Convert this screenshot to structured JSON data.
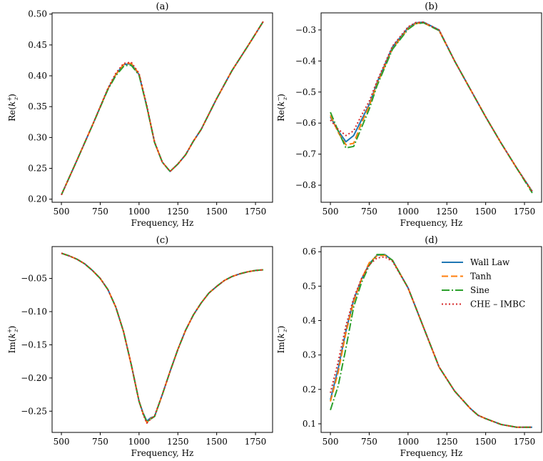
{
  "figure": {
    "series_names": [
      "Wall Law",
      "Tanh",
      "Sine",
      "CHE – IMBC"
    ],
    "series_colors": [
      "#1f77b4",
      "#ff7f0e",
      "#2ca02c",
      "#d62728"
    ]
  },
  "chart_data": [
    {
      "type": "line",
      "title": "(a)",
      "xlabel": "Frequency, Hz",
      "ylabel_main": "Re(",
      "ylabel_k": "k",
      "ylabel_sub": "z",
      "ylabel_sup": "+",
      "ylabel_close": ")",
      "xlim": [
        440,
        1860
      ],
      "ylim": [
        0.195,
        0.502
      ],
      "xticks": [
        500,
        750,
        1000,
        1250,
        1500,
        1750
      ],
      "xtick_labels": [
        "500",
        "750",
        "1000",
        "1250",
        "1500",
        "1750"
      ],
      "yticks": [
        0.2,
        0.25,
        0.3,
        0.35,
        0.4,
        0.45,
        0.5
      ],
      "ytick_labels": [
        "0.20",
        "0.25",
        "0.30",
        "0.35",
        "0.40",
        "0.45",
        "0.50"
      ],
      "series": [
        {
          "name": "Wall Law",
          "x": [
            500,
            600,
            700,
            800,
            850,
            900,
            925,
            950,
            1000,
            1050,
            1100,
            1150,
            1200,
            1250,
            1300,
            1350,
            1400,
            1500,
            1600,
            1700,
            1800
          ],
          "y": [
            0.207,
            0.263,
            0.32,
            0.379,
            0.402,
            0.418,
            0.419,
            0.419,
            0.402,
            0.35,
            0.292,
            0.26,
            0.245,
            0.257,
            0.272,
            0.294,
            0.313,
            0.363,
            0.409,
            0.448,
            0.488
          ]
        },
        {
          "name": "Tanh",
          "x": [
            500,
            600,
            700,
            800,
            850,
            900,
            925,
            950,
            1000,
            1050,
            1100,
            1150,
            1200,
            1250,
            1300,
            1350,
            1400,
            1500,
            1600,
            1700,
            1800
          ],
          "y": [
            0.207,
            0.263,
            0.32,
            0.379,
            0.402,
            0.418,
            0.42,
            0.42,
            0.403,
            0.35,
            0.292,
            0.26,
            0.245,
            0.257,
            0.272,
            0.294,
            0.313,
            0.363,
            0.409,
            0.448,
            0.488
          ]
        },
        {
          "name": "Sine",
          "x": [
            500,
            600,
            700,
            800,
            850,
            900,
            925,
            950,
            1000,
            1050,
            1100,
            1150,
            1200,
            1250,
            1300,
            1350,
            1400,
            1500,
            1600,
            1700,
            1800
          ],
          "y": [
            0.207,
            0.263,
            0.32,
            0.378,
            0.4,
            0.415,
            0.417,
            0.417,
            0.401,
            0.35,
            0.292,
            0.26,
            0.245,
            0.257,
            0.272,
            0.294,
            0.313,
            0.363,
            0.409,
            0.448,
            0.488
          ]
        },
        {
          "name": "CHE – IMBC",
          "x": [
            500,
            600,
            700,
            800,
            850,
            900,
            925,
            950,
            1000,
            1050,
            1100,
            1150,
            1200,
            1250,
            1300,
            1350,
            1400,
            1500,
            1600,
            1700,
            1800
          ],
          "y": [
            0.207,
            0.263,
            0.32,
            0.38,
            0.404,
            0.42,
            0.421,
            0.422,
            0.404,
            0.352,
            0.293,
            0.26,
            0.245,
            0.257,
            0.272,
            0.294,
            0.313,
            0.363,
            0.409,
            0.448,
            0.488
          ]
        }
      ]
    },
    {
      "type": "line",
      "title": "(b)",
      "xlabel": "Frequency, Hz",
      "ylabel_main": "Re(",
      "ylabel_k": "k",
      "ylabel_sub": "z",
      "ylabel_sup": "−",
      "ylabel_close": ")",
      "xlim": [
        440,
        1860
      ],
      "ylim": [
        -0.855,
        -0.245
      ],
      "xticks": [
        500,
        750,
        1000,
        1250,
        1500,
        1750
      ],
      "xtick_labels": [
        "500",
        "750",
        "1000",
        "1250",
        "1500",
        "1750"
      ],
      "yticks": [
        -0.8,
        -0.7,
        -0.6,
        -0.5,
        -0.4,
        -0.3
      ],
      "ytick_labels": [
        "−0.8",
        "−0.7",
        "−0.6",
        "−0.5",
        "−0.4",
        "−0.3"
      ],
      "series": [
        {
          "name": "Wall Law",
          "x": [
            500,
            550,
            600,
            650,
            700,
            750,
            800,
            900,
            1000,
            1050,
            1100,
            1200,
            1300,
            1400,
            1500,
            1600,
            1700,
            1800
          ],
          "y": [
            -0.58,
            -0.625,
            -0.66,
            -0.64,
            -0.59,
            -0.54,
            -0.47,
            -0.355,
            -0.293,
            -0.277,
            -0.275,
            -0.3,
            -0.4,
            -0.49,
            -0.58,
            -0.665,
            -0.745,
            -0.82
          ]
        },
        {
          "name": "Tanh",
          "x": [
            500,
            550,
            600,
            650,
            700,
            750,
            800,
            900,
            1000,
            1050,
            1100,
            1200,
            1300,
            1400,
            1500,
            1600,
            1700,
            1800
          ],
          "y": [
            -0.575,
            -0.63,
            -0.67,
            -0.665,
            -0.6,
            -0.545,
            -0.475,
            -0.36,
            -0.296,
            -0.279,
            -0.277,
            -0.302,
            -0.4,
            -0.49,
            -0.58,
            -0.665,
            -0.745,
            -0.822
          ]
        },
        {
          "name": "Sine",
          "x": [
            500,
            550,
            600,
            650,
            700,
            750,
            800,
            900,
            1000,
            1050,
            1100,
            1200,
            1300,
            1400,
            1500,
            1600,
            1700,
            1800
          ],
          "y": [
            -0.565,
            -0.625,
            -0.68,
            -0.675,
            -0.615,
            -0.555,
            -0.48,
            -0.362,
            -0.298,
            -0.28,
            -0.277,
            -0.302,
            -0.4,
            -0.49,
            -0.58,
            -0.665,
            -0.745,
            -0.825
          ]
        },
        {
          "name": "CHE – IMBC",
          "x": [
            500,
            550,
            600,
            650,
            700,
            750,
            800,
            900,
            1000,
            1050,
            1100,
            1200,
            1300,
            1400,
            1500,
            1600,
            1700,
            1800
          ],
          "y": [
            -0.59,
            -0.62,
            -0.64,
            -0.625,
            -0.575,
            -0.53,
            -0.465,
            -0.352,
            -0.29,
            -0.276,
            -0.275,
            -0.3,
            -0.4,
            -0.49,
            -0.58,
            -0.665,
            -0.745,
            -0.82
          ]
        }
      ]
    },
    {
      "type": "line",
      "title": "(c)",
      "xlabel": "Frequency, Hz",
      "ylabel_main": "Im(",
      "ylabel_k": "k",
      "ylabel_sub": "z",
      "ylabel_sup": "+",
      "ylabel_close": ")",
      "xlim": [
        440,
        1860
      ],
      "ylim": [
        -0.282,
        -0.002
      ],
      "xticks": [
        500,
        750,
        1000,
        1250,
        1500,
        1750
      ],
      "xtick_labels": [
        "500",
        "750",
        "1000",
        "1250",
        "1500",
        "1750"
      ],
      "yticks": [
        -0.25,
        -0.2,
        -0.15,
        -0.1,
        -0.05
      ],
      "ytick_labels": [
        "−0.25",
        "−0.20",
        "−0.15",
        "−0.10",
        "−0.05"
      ],
      "series": [
        {
          "name": "Wall Law",
          "x": [
            500,
            550,
            600,
            650,
            700,
            750,
            800,
            850,
            900,
            950,
            1000,
            1025,
            1050,
            1075,
            1100,
            1150,
            1200,
            1250,
            1300,
            1350,
            1400,
            1450,
            1500,
            1550,
            1600,
            1650,
            1700,
            1750,
            1800
          ],
          "y": [
            -0.012,
            -0.016,
            -0.021,
            -0.028,
            -0.038,
            -0.05,
            -0.067,
            -0.093,
            -0.13,
            -0.18,
            -0.235,
            -0.252,
            -0.265,
            -0.26,
            -0.258,
            -0.225,
            -0.19,
            -0.157,
            -0.128,
            -0.105,
            -0.087,
            -0.072,
            -0.062,
            -0.053,
            -0.047,
            -0.043,
            -0.04,
            -0.038,
            -0.037
          ]
        },
        {
          "name": "Tanh",
          "x": [
            500,
            550,
            600,
            650,
            700,
            750,
            800,
            850,
            900,
            950,
            1000,
            1025,
            1050,
            1075,
            1100,
            1150,
            1200,
            1250,
            1300,
            1350,
            1400,
            1450,
            1500,
            1550,
            1600,
            1650,
            1700,
            1750,
            1800
          ],
          "y": [
            -0.012,
            -0.016,
            -0.021,
            -0.028,
            -0.038,
            -0.05,
            -0.067,
            -0.093,
            -0.13,
            -0.18,
            -0.235,
            -0.253,
            -0.267,
            -0.261,
            -0.258,
            -0.225,
            -0.19,
            -0.157,
            -0.128,
            -0.105,
            -0.087,
            -0.072,
            -0.062,
            -0.053,
            -0.047,
            -0.043,
            -0.04,
            -0.038,
            -0.037
          ]
        },
        {
          "name": "Sine",
          "x": [
            500,
            550,
            600,
            650,
            700,
            750,
            800,
            850,
            900,
            950,
            1000,
            1025,
            1050,
            1075,
            1100,
            1150,
            1200,
            1250,
            1300,
            1350,
            1400,
            1450,
            1500,
            1550,
            1600,
            1650,
            1700,
            1750,
            1800
          ],
          "y": [
            -0.012,
            -0.016,
            -0.021,
            -0.028,
            -0.038,
            -0.05,
            -0.067,
            -0.093,
            -0.13,
            -0.18,
            -0.235,
            -0.253,
            -0.266,
            -0.262,
            -0.258,
            -0.225,
            -0.19,
            -0.157,
            -0.128,
            -0.105,
            -0.087,
            -0.072,
            -0.062,
            -0.053,
            -0.047,
            -0.043,
            -0.04,
            -0.038,
            -0.037
          ]
        },
        {
          "name": "CHE – IMBC",
          "x": [
            500,
            550,
            600,
            650,
            700,
            750,
            800,
            850,
            900,
            950,
            1000,
            1025,
            1050,
            1075,
            1100,
            1150,
            1200,
            1250,
            1300,
            1350,
            1400,
            1450,
            1500,
            1550,
            1600,
            1650,
            1700,
            1750,
            1800
          ],
          "y": [
            -0.012,
            -0.016,
            -0.021,
            -0.028,
            -0.038,
            -0.05,
            -0.067,
            -0.093,
            -0.13,
            -0.18,
            -0.235,
            -0.254,
            -0.268,
            -0.262,
            -0.257,
            -0.225,
            -0.19,
            -0.157,
            -0.128,
            -0.105,
            -0.087,
            -0.072,
            -0.062,
            -0.053,
            -0.047,
            -0.043,
            -0.04,
            -0.038,
            -0.037
          ]
        }
      ]
    },
    {
      "type": "line",
      "title": "(d)",
      "xlabel": "Frequency, Hz",
      "ylabel_main": "Im(",
      "ylabel_k": "k",
      "ylabel_sub": "z",
      "ylabel_sup": "−",
      "ylabel_close": ")",
      "xlim": [
        440,
        1860
      ],
      "ylim": [
        0.075,
        0.615
      ],
      "xticks": [
        500,
        750,
        1000,
        1250,
        1500,
        1750
      ],
      "xtick_labels": [
        "500",
        "750",
        "1000",
        "1250",
        "1500",
        "1750"
      ],
      "yticks": [
        0.1,
        0.2,
        0.3,
        0.4,
        0.5,
        0.6
      ],
      "ytick_labels": [
        "0.1",
        "0.2",
        "0.3",
        "0.4",
        "0.5",
        "0.6"
      ],
      "legend": "top-right",
      "series": [
        {
          "name": "Wall Law",
          "x": [
            500,
            550,
            600,
            650,
            700,
            750,
            800,
            850,
            900,
            1000,
            1100,
            1200,
            1300,
            1400,
            1450,
            1500,
            1600,
            1700,
            1800
          ],
          "y": [
            0.17,
            0.26,
            0.37,
            0.46,
            0.52,
            0.565,
            0.59,
            0.592,
            0.575,
            0.495,
            0.38,
            0.265,
            0.195,
            0.145,
            0.125,
            0.115,
            0.098,
            0.09,
            0.09
          ]
        },
        {
          "name": "Tanh",
          "x": [
            500,
            550,
            600,
            650,
            700,
            750,
            800,
            850,
            900,
            1000,
            1100,
            1200,
            1300,
            1400,
            1450,
            1500,
            1600,
            1700,
            1800
          ],
          "y": [
            0.165,
            0.25,
            0.365,
            0.455,
            0.52,
            0.568,
            0.588,
            0.59,
            0.575,
            0.495,
            0.38,
            0.265,
            0.195,
            0.145,
            0.125,
            0.115,
            0.098,
            0.09,
            0.09
          ]
        },
        {
          "name": "Sine",
          "x": [
            500,
            550,
            600,
            650,
            700,
            750,
            800,
            850,
            900,
            1000,
            1100,
            1200,
            1300,
            1400,
            1450,
            1500,
            1600,
            1700,
            1800
          ],
          "y": [
            0.14,
            0.21,
            0.32,
            0.44,
            0.51,
            0.56,
            0.592,
            0.592,
            0.575,
            0.495,
            0.38,
            0.265,
            0.195,
            0.145,
            0.125,
            0.115,
            0.098,
            0.09,
            0.09
          ]
        },
        {
          "name": "CHE – IMBC",
          "x": [
            500,
            550,
            600,
            650,
            700,
            750,
            800,
            850,
            900,
            1000,
            1100,
            1200,
            1300,
            1400,
            1450,
            1500,
            1600,
            1700,
            1800
          ],
          "y": [
            0.19,
            0.28,
            0.385,
            0.465,
            0.522,
            0.562,
            0.582,
            0.585,
            0.572,
            0.495,
            0.38,
            0.265,
            0.195,
            0.145,
            0.125,
            0.115,
            0.098,
            0.09,
            0.09
          ]
        }
      ]
    }
  ]
}
